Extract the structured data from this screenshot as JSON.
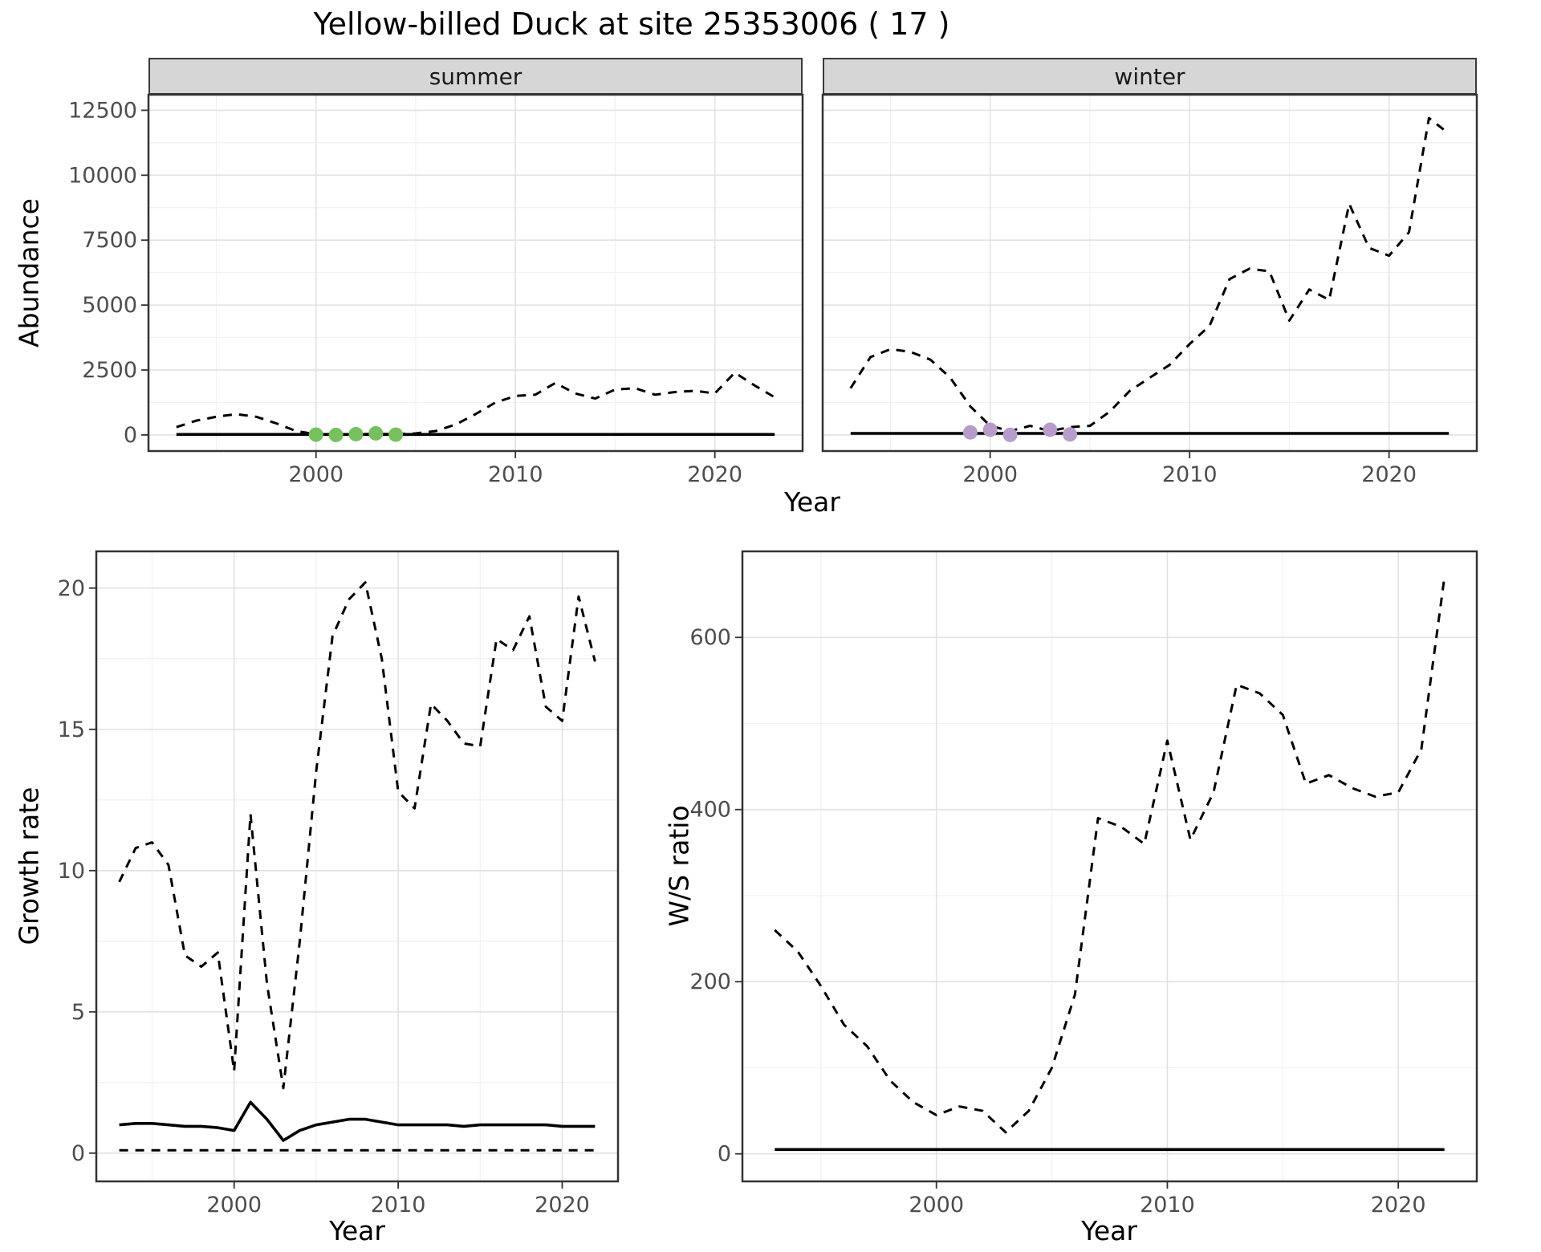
{
  "title": "Yellow-billed Duck at site 25353006 ( 17 )",
  "colors": {
    "line": "#000000",
    "summer_points": "#76c05e",
    "winter_points": "#b69cca",
    "strip_bg": "#d6d6d6",
    "grid_major": "#e2e2e2",
    "grid_minor": "#f1f1f1",
    "panel_border": "#333333",
    "axis_text": "#4d4d4d",
    "tick": "#333333"
  },
  "chart_data": [
    {
      "id": "summer-abundance",
      "type": "line",
      "facet_label": "summer",
      "xlabel": "Year",
      "ylabel": "Abundance",
      "x": [
        1993,
        1994,
        1995,
        1996,
        1997,
        1998,
        1999,
        2000,
        2001,
        2002,
        2003,
        2004,
        2005,
        2006,
        2007,
        2008,
        2009,
        2010,
        2011,
        2012,
        2013,
        2014,
        2015,
        2016,
        2017,
        2018,
        2019,
        2020,
        2021,
        2022,
        2023
      ],
      "xlim": [
        1991.6,
        2024.4
      ],
      "x_ticks": [
        2000,
        2010,
        2020
      ],
      "ylim": [
        -620,
        13100
      ],
      "y_ticks": [
        0,
        2500,
        5000,
        7500,
        10000,
        12500
      ],
      "show_y_tick_labels": true,
      "grid": true,
      "series": [
        {
          "name": "summer count (dashed)",
          "style": "dashed",
          "values": [
            300,
            550,
            700,
            800,
            700,
            450,
            150,
            30,
            20,
            30,
            40,
            30,
            60,
            150,
            400,
            800,
            1250,
            1500,
            1550,
            2000,
            1600,
            1400,
            1750,
            1800,
            1550,
            1650,
            1700,
            1600,
            2400,
            1900,
            1450
          ]
        },
        {
          "name": "baseline (solid)",
          "style": "solid",
          "values": [
            20,
            20,
            20,
            20,
            20,
            20,
            20,
            20,
            20,
            20,
            20,
            20,
            20,
            20,
            20,
            20,
            20,
            20,
            20,
            20,
            20,
            20,
            20,
            20,
            20,
            20,
            20,
            20,
            20,
            20,
            20
          ]
        }
      ],
      "points": {
        "name": "highlighted-years",
        "color_key": "summer_points",
        "x": [
          2000,
          2001,
          2002,
          2003,
          2004
        ],
        "y": [
          10,
          0,
          30,
          60,
          10
        ]
      }
    },
    {
      "id": "winter-abundance",
      "type": "line",
      "facet_label": "winter",
      "xlabel": "Year",
      "ylabel": "Abundance",
      "x": [
        1993,
        1994,
        1995,
        1996,
        1997,
        1998,
        1999,
        2000,
        2001,
        2002,
        2003,
        2004,
        2005,
        2006,
        2007,
        2008,
        2009,
        2010,
        2011,
        2012,
        2013,
        2014,
        2015,
        2016,
        2017,
        2018,
        2019,
        2020,
        2021,
        2022,
        2023
      ],
      "xlim": [
        1991.6,
        2024.4
      ],
      "x_ticks": [
        2000,
        2010,
        2020
      ],
      "ylim": [
        -620,
        13100
      ],
      "y_ticks": [
        0,
        2500,
        5000,
        7500,
        10000,
        12500
      ],
      "show_y_tick_labels": false,
      "grid": true,
      "series": [
        {
          "name": "winter count (dashed)",
          "style": "dashed",
          "values": [
            1800,
            3000,
            3300,
            3200,
            2900,
            2200,
            1100,
            350,
            150,
            350,
            150,
            300,
            350,
            900,
            1700,
            2200,
            2700,
            3500,
            4200,
            6000,
            6400,
            6300,
            4400,
            5600,
            5200,
            8900,
            7200,
            6900,
            7800,
            12200,
            11600
          ]
        },
        {
          "name": "baseline (solid)",
          "style": "solid",
          "values": [
            60,
            60,
            60,
            60,
            60,
            60,
            60,
            60,
            60,
            60,
            60,
            60,
            60,
            60,
            60,
            60,
            60,
            60,
            60,
            60,
            60,
            60,
            60,
            60,
            60,
            60,
            60,
            60,
            60,
            60,
            60
          ]
        }
      ],
      "points": {
        "name": "highlighted-years",
        "color_key": "winter_points",
        "x": [
          1999,
          2000,
          2001,
          2003,
          2004
        ],
        "y": [
          100,
          200,
          0,
          200,
          20
        ]
      }
    },
    {
      "id": "growth-rate",
      "type": "line",
      "facet_label": "",
      "xlabel": "Year",
      "ylabel": "Growth rate",
      "x": [
        1993,
        1994,
        1995,
        1996,
        1997,
        1998,
        1999,
        2000,
        2001,
        2002,
        2003,
        2004,
        2005,
        2006,
        2007,
        2008,
        2009,
        2010,
        2011,
        2012,
        2013,
        2014,
        2015,
        2016,
        2017,
        2018,
        2019,
        2020,
        2021,
        2022
      ],
      "xlim": [
        1991.6,
        2023.4
      ],
      "x_ticks": [
        2000,
        2010,
        2020
      ],
      "ylim": [
        -1.0,
        21.3
      ],
      "y_ticks": [
        0,
        5,
        10,
        15,
        20
      ],
      "show_y_tick_labels": true,
      "grid": true,
      "series": [
        {
          "name": "upper bound (dashed)",
          "style": "dashed",
          "values": [
            9.6,
            10.8,
            11.0,
            10.2,
            7.0,
            6.6,
            7.1,
            2.9,
            12.0,
            6.0,
            2.3,
            7.5,
            13.5,
            18.3,
            19.6,
            20.2,
            17.5,
            12.8,
            12.2,
            15.9,
            15.3,
            14.5,
            14.4,
            18.2,
            17.8,
            19.0,
            15.8,
            15.3,
            19.7,
            17.4
          ]
        },
        {
          "name": "lower bound (dashed)",
          "style": "dashed",
          "values": [
            0.1,
            0.1,
            0.1,
            0.1,
            0.1,
            0.1,
            0.1,
            0.1,
            0.1,
            0.1,
            0.1,
            0.1,
            0.1,
            0.1,
            0.1,
            0.1,
            0.1,
            0.1,
            0.1,
            0.1,
            0.1,
            0.1,
            0.1,
            0.1,
            0.1,
            0.1,
            0.1,
            0.1,
            0.1,
            0.1
          ]
        },
        {
          "name": "estimate (solid)",
          "style": "solid",
          "values": [
            1.0,
            1.05,
            1.05,
            1.0,
            0.95,
            0.95,
            0.9,
            0.8,
            1.8,
            1.2,
            0.45,
            0.8,
            1.0,
            1.1,
            1.2,
            1.2,
            1.1,
            1.0,
            1.0,
            1.0,
            1.0,
            0.95,
            1.0,
            1.0,
            1.0,
            1.0,
            1.0,
            0.95,
            0.95,
            0.95
          ]
        }
      ]
    },
    {
      "id": "ws-ratio",
      "type": "line",
      "facet_label": "",
      "xlabel": "Year",
      "ylabel": "W/S ratio",
      "x": [
        1993,
        1994,
        1995,
        1996,
        1997,
        1998,
        1999,
        2000,
        2001,
        2002,
        2003,
        2004,
        2005,
        2006,
        2007,
        2008,
        2009,
        2010,
        2011,
        2012,
        2013,
        2014,
        2015,
        2016,
        2017,
        2018,
        2019,
        2020,
        2021,
        2022
      ],
      "xlim": [
        1991.6,
        2023.4
      ],
      "x_ticks": [
        2000,
        2010,
        2020
      ],
      "ylim": [
        -32,
        700
      ],
      "y_ticks": [
        0,
        200,
        400,
        600
      ],
      "show_y_tick_labels": true,
      "grid": true,
      "series": [
        {
          "name": "W/S ratio (dashed)",
          "style": "dashed",
          "values": [
            260,
            235,
            195,
            150,
            125,
            85,
            60,
            45,
            55,
            50,
            25,
            50,
            100,
            185,
            390,
            380,
            360,
            480,
            365,
            420,
            545,
            535,
            510,
            430,
            440,
            425,
            415,
            420,
            470,
            670
          ]
        },
        {
          "name": "baseline (solid)",
          "style": "solid",
          "values": [
            5,
            5,
            5,
            5,
            5,
            5,
            5,
            5,
            5,
            5,
            5,
            5,
            5,
            5,
            5,
            5,
            5,
            5,
            5,
            5,
            5,
            5,
            5,
            5,
            5,
            5,
            5,
            5,
            5,
            5
          ]
        }
      ]
    }
  ]
}
